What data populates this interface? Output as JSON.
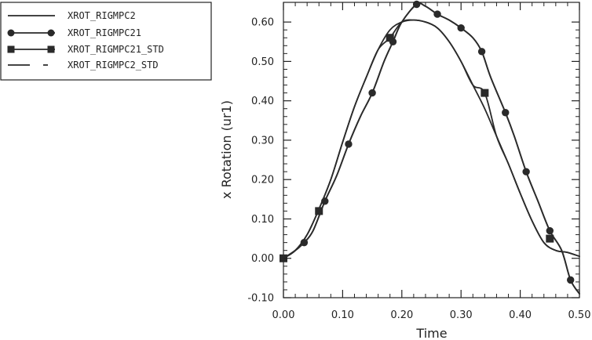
{
  "chart_data": {
    "type": "line",
    "title": "",
    "xlabel": "Time",
    "ylabel": "x  Rotation  (ur1)",
    "xlim": [
      0.0,
      0.5
    ],
    "ylim": [
      -0.1,
      0.65
    ],
    "xticks": [
      "0.00",
      "0.10",
      "0.20",
      "0.30",
      "0.40",
      "0.50"
    ],
    "yticks": [
      "-0.10",
      "0.00",
      "0.10",
      "0.20",
      "0.30",
      "0.40",
      "0.50",
      "0.60"
    ],
    "grid": false,
    "legend_position": "top-left",
    "colors": {
      "line": "#2a2a2a",
      "axis": "#222222"
    },
    "series": [
      {
        "name": "XROT_RIGMPC2",
        "style": "solid",
        "marker": "none",
        "x": [
          0.0,
          0.02,
          0.04,
          0.06,
          0.08,
          0.1,
          0.12,
          0.14,
          0.16,
          0.18,
          0.2,
          0.22,
          0.24,
          0.26,
          0.28,
          0.3,
          0.32,
          0.34,
          0.36,
          0.38,
          0.4,
          0.42,
          0.44,
          0.46,
          0.48,
          0.5
        ],
        "y": [
          0.0,
          0.02,
          0.06,
          0.125,
          0.2,
          0.295,
          0.385,
          0.46,
          0.53,
          0.58,
          0.6,
          0.605,
          0.6,
          0.585,
          0.55,
          0.5,
          0.44,
          0.38,
          0.31,
          0.24,
          0.165,
          0.095,
          0.04,
          0.02,
          0.015,
          0.005
        ]
      },
      {
        "name": "XROT_RIGMPC21",
        "style": "solid",
        "marker": "circle",
        "x": [
          0.0,
          0.02,
          0.035,
          0.05,
          0.07,
          0.09,
          0.11,
          0.13,
          0.15,
          0.17,
          0.185,
          0.2,
          0.225,
          0.24,
          0.26,
          0.28,
          0.3,
          0.32,
          0.335,
          0.35,
          0.375,
          0.39,
          0.41,
          0.43,
          0.45,
          0.47,
          0.485,
          0.5
        ],
        "y": [
          0.0,
          0.02,
          0.04,
          0.07,
          0.145,
          0.21,
          0.29,
          0.36,
          0.42,
          0.5,
          0.55,
          0.6,
          0.645,
          0.64,
          0.62,
          0.605,
          0.585,
          0.56,
          0.525,
          0.46,
          0.37,
          0.31,
          0.22,
          0.145,
          0.07,
          0.02,
          -0.055,
          -0.09
        ],
        "marker_x": [
          0.0,
          0.035,
          0.07,
          0.11,
          0.15,
          0.185,
          0.225,
          0.26,
          0.3,
          0.335,
          0.375,
          0.41,
          0.45,
          0.485
        ],
        "marker_y": [
          0.0,
          0.04,
          0.145,
          0.29,
          0.42,
          0.55,
          0.645,
          0.62,
          0.585,
          0.525,
          0.37,
          0.22,
          0.07,
          -0.055
        ]
      },
      {
        "name": "XROT_RIGMPC21_STD",
        "style": "solid",
        "marker": "square",
        "x": [
          0.0,
          0.02,
          0.04,
          0.06,
          0.08,
          0.1,
          0.12,
          0.14,
          0.16,
          0.18,
          0.2,
          0.22,
          0.24,
          0.26,
          0.28,
          0.3,
          0.32,
          0.34,
          0.36,
          0.38,
          0.4,
          0.42,
          0.44,
          0.46,
          0.48,
          0.5
        ],
        "y": [
          0.0,
          0.02,
          0.06,
          0.125,
          0.2,
          0.295,
          0.385,
          0.46,
          0.53,
          0.56,
          0.6,
          0.605,
          0.6,
          0.585,
          0.55,
          0.5,
          0.44,
          0.42,
          0.31,
          0.24,
          0.165,
          0.095,
          0.04,
          0.02,
          0.015,
          0.005
        ],
        "marker_x": [
          0.0,
          0.06,
          0.18,
          0.34,
          0.45
        ],
        "marker_y": [
          0.0,
          0.12,
          0.56,
          0.42,
          0.05
        ]
      },
      {
        "name": "XROT_RIGMPC2_STD",
        "style": "dash",
        "marker": "none",
        "x": [
          0.0,
          0.02,
          0.04,
          0.06,
          0.08,
          0.1,
          0.12,
          0.14,
          0.16,
          0.18,
          0.2,
          0.22,
          0.24,
          0.26,
          0.28,
          0.3,
          0.32,
          0.34,
          0.36,
          0.38,
          0.4,
          0.42,
          0.44,
          0.46,
          0.48,
          0.5
        ],
        "y": [
          0.0,
          0.02,
          0.06,
          0.125,
          0.2,
          0.295,
          0.385,
          0.46,
          0.53,
          0.58,
          0.6,
          0.605,
          0.6,
          0.585,
          0.55,
          0.5,
          0.44,
          0.38,
          0.31,
          0.24,
          0.165,
          0.095,
          0.04,
          0.02,
          0.015,
          0.005
        ]
      }
    ]
  }
}
